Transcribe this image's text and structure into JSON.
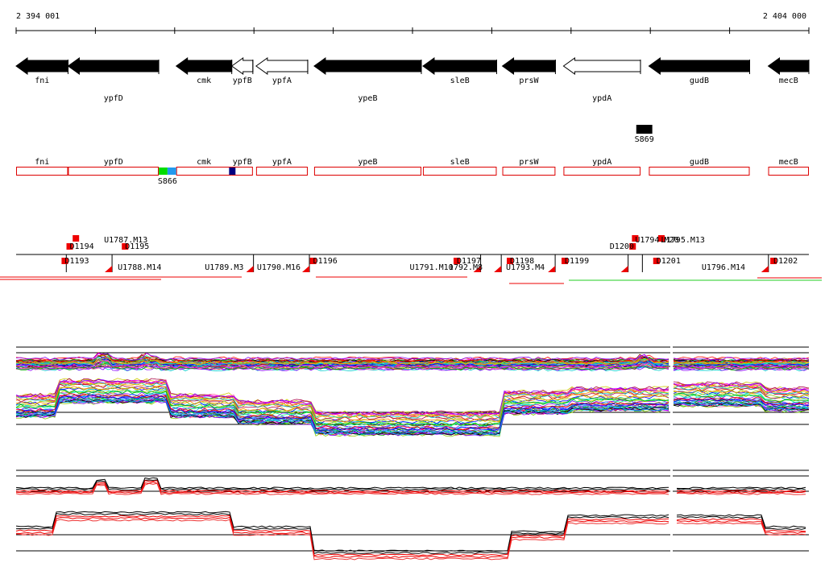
{
  "ruler": {
    "start_label": "2 394 001",
    "end_label": "2 404 000",
    "start": 2394001,
    "end": 2404000
  },
  "genes": [
    {
      "name": "fni",
      "start": 2394001,
      "end": 2394656,
      "strand": "-",
      "filled": true
    },
    {
      "name": "ypfD",
      "start": 2394656,
      "end": 2395800,
      "strand": "-",
      "filled": true
    },
    {
      "name": "cmk",
      "start": 2396020,
      "end": 2396721,
      "strand": "-",
      "filled": true
    },
    {
      "name": "ypfB",
      "start": 2396721,
      "end": 2396987,
      "strand": "-",
      "filled": false
    },
    {
      "name": "ypfA",
      "start": 2397028,
      "end": 2397679,
      "strand": "-",
      "filled": false
    },
    {
      "name": "ypeB",
      "start": 2397760,
      "end": 2399112,
      "strand": "-",
      "filled": true
    },
    {
      "name": "sleB",
      "start": 2399132,
      "end": 2400062,
      "strand": "-",
      "filled": true
    },
    {
      "name": "prsW",
      "start": 2400134,
      "end": 2400803,
      "strand": "-",
      "filled": true
    },
    {
      "name": "ypdA",
      "start": 2400905,
      "end": 2401876,
      "strand": "-",
      "filled": false
    },
    {
      "name": "gudB",
      "start": 2401982,
      "end": 2403253,
      "strand": "-",
      "filled": true
    },
    {
      "name": "mecB",
      "start": 2403487,
      "end": 2404000,
      "strand": "-",
      "filled": true
    }
  ],
  "features_top": [
    {
      "name": "S869",
      "start": 2401823,
      "end": 2402025
    }
  ],
  "gene_boxes_track": {
    "markers": [
      {
        "name": "S866",
        "start": 2395800,
        "end": 2396020,
        "colors": [
          "#00dd00",
          "#2299ee"
        ]
      },
      {
        "name": "",
        "start": 2396687,
        "end": 2396768,
        "colors": [
          "#000080"
        ]
      }
    ],
    "marker_label": "S866"
  },
  "segments": {
    "labels": [
      {
        "text": "D1194",
        "x": 2394677
      },
      {
        "text": "U1787.M13",
        "x": 2395110
      },
      {
        "text": "D1195",
        "x": 2395375
      },
      {
        "text": "D1193",
        "x": 2394615
      },
      {
        "text": "U1788.M14",
        "x": 2395283
      },
      {
        "text": "U1789.M3",
        "x": 2396381
      },
      {
        "text": "U1790.M16",
        "x": 2397038
      },
      {
        "text": "D1196",
        "x": 2397747
      },
      {
        "text": "U1791.M10",
        "x": 2398965
      },
      {
        "text": "1792.M8",
        "x": 2399457
      },
      {
        "text": "D1197",
        "x": 2399559
      },
      {
        "text": "D1198",
        "x": 2400230
      },
      {
        "text": "U1793.M4",
        "x": 2400179
      },
      {
        "text": "D1199",
        "x": 2400921
      },
      {
        "text": "D1200",
        "x": 2401488
      },
      {
        "text": "U1794.M20",
        "x": 2401809
      },
      {
        "text": "U1795.M13",
        "x": 2402138
      },
      {
        "text": "D1201",
        "x": 2402077
      },
      {
        "text": "U1796.M14",
        "x": 2402647
      },
      {
        "text": "D1202",
        "x": 2403554
      }
    ]
  }
}
